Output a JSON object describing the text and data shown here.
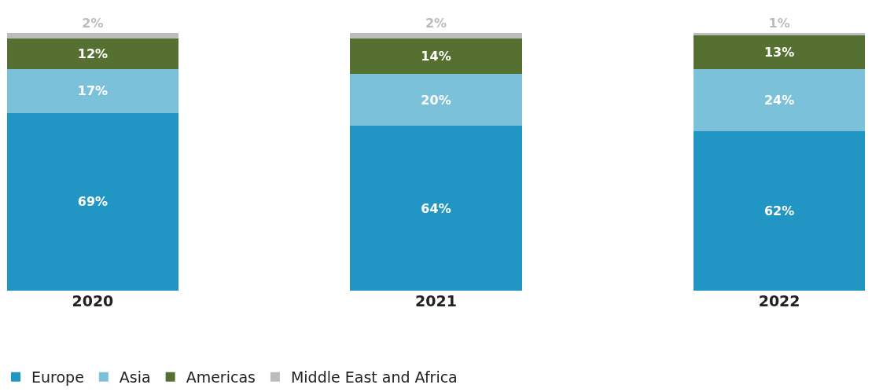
{
  "chart_data": {
    "type": "bar",
    "stacked": true,
    "categories": [
      "2020",
      "2021",
      "2022"
    ],
    "series": [
      {
        "name": "Europe",
        "color": "#2196c4",
        "values": [
          69,
          64,
          62
        ],
        "value_labels": [
          "69%",
          "64%",
          "62%"
        ]
      },
      {
        "name": "Asia",
        "color": "#7bc1da",
        "values": [
          17,
          20,
          24
        ],
        "value_labels": [
          "17%",
          "20%",
          "24%"
        ]
      },
      {
        "name": "Americas",
        "color": "#557030",
        "values": [
          12,
          14,
          13
        ],
        "value_labels": [
          "12%",
          "14%",
          "13%"
        ]
      },
      {
        "name": "Middle East and Africa",
        "color": "#bcbcbe",
        "values": [
          2,
          2,
          1
        ],
        "value_labels": [
          "2%",
          "2%",
          "1%"
        ]
      }
    ],
    "legend": "bottom left",
    "tick_labels": "x"
  }
}
